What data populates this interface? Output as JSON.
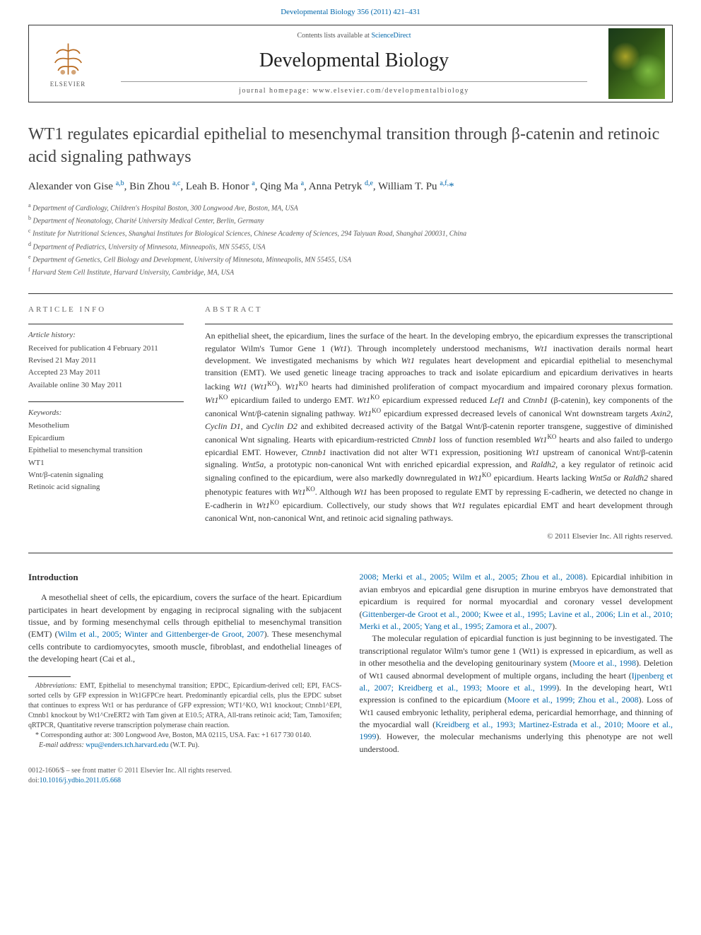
{
  "top_link_prefix": "Developmental Biology 356 (2011) 421–431",
  "header": {
    "contents_prefix": "Contents lists available at ",
    "contents_link": "ScienceDirect",
    "journal_name": "Developmental Biology",
    "homepage_prefix": "journal homepage: ",
    "homepage_url": "www.elsevier.com/developmentalbiology",
    "elsevier_label": "ELSEVIER"
  },
  "title": "WT1 regulates epicardial epithelial to mesenchymal transition through β-catenin and retinoic acid signaling pathways",
  "authors_html": "Alexander von Gise <sup>a,b</sup>, Bin Zhou <sup>a,c</sup>, Leah B. Honor <sup>a</sup>, Qing Ma <sup>a</sup>, Anna Petryk <sup>d,e</sup>, William T. Pu <sup>a,f,</sup><span class='star'>*</span>",
  "affiliations": [
    {
      "sup": "a",
      "text": "Department of Cardiology, Children's Hospital Boston, 300 Longwood Ave, Boston, MA, USA"
    },
    {
      "sup": "b",
      "text": "Department of Neonatology, Charité University Medical Center, Berlin, Germany"
    },
    {
      "sup": "c",
      "text": "Institute for Nutritional Sciences, Shanghai Institutes for Biological Sciences, Chinese Academy of Sciences, 294 Taiyuan Road, Shanghai 200031, China"
    },
    {
      "sup": "d",
      "text": "Department of Pediatrics, University of Minnesota, Minneapolis, MN 55455, USA"
    },
    {
      "sup": "e",
      "text": "Department of Genetics, Cell Biology and Development, University of Minnesota, Minneapolis, MN 55455, USA"
    },
    {
      "sup": "f",
      "text": "Harvard Stem Cell Institute, Harvard University, Cambridge, MA, USA"
    }
  ],
  "article_info": {
    "heading": "ARTICLE INFO",
    "history_label": "Article history:",
    "history": [
      "Received for publication 4 February 2011",
      "Revised 21 May 2011",
      "Accepted 23 May 2011",
      "Available online 30 May 2011"
    ],
    "keywords_label": "Keywords:",
    "keywords": [
      "Mesothelium",
      "Epicardium",
      "Epithelial to mesenchymal transition",
      "WT1",
      "Wnt/β-catenin signaling",
      "Retinoic acid signaling"
    ]
  },
  "abstract": {
    "heading": "ABSTRACT",
    "text": "An epithelial sheet, the epicardium, lines the surface of the heart. In the developing embryo, the epicardium expresses the transcriptional regulator Wilm's Tumor Gene 1 (Wt1). Through incompletely understood mechanisms, Wt1 inactivation derails normal heart development. We investigated mechanisms by which Wt1 regulates heart development and epicardial epithelial to mesenchymal transition (EMT). We used genetic lineage tracing approaches to track and isolate epicardium and epicardium derivatives in hearts lacking Wt1 (Wt1^KO). Wt1^KO hearts had diminished proliferation of compact myocardium and impaired coronary plexus formation. Wt1^KO epicardium failed to undergo EMT. Wt1^KO epicardium expressed reduced Lef1 and Ctnnb1 (β-catenin), key components of the canonical Wnt/β-catenin signaling pathway. Wt1^KO epicardium expressed decreased levels of canonical Wnt downstream targets Axin2, Cyclin D1, and Cyclin D2 and exhibited decreased activity of the Batgal Wnt/β-catenin reporter transgene, suggestive of diminished canonical Wnt signaling. Hearts with epicardium-restricted Ctnnb1 loss of function resembled Wt1^KO hearts and also failed to undergo epicardial EMT. However, Ctnnb1 inactivation did not alter WT1 expression, positioning Wt1 upstream of canonical Wnt/β-catenin signaling. Wnt5a, a prototypic non-canonical Wnt with enriched epicardial expression, and Raldh2, a key regulator of retinoic acid signaling confined to the epicardium, were also markedly downregulated in Wt1^KO epicardium. Hearts lacking Wnt5a or Raldh2 shared phenotypic features with Wt1^KO. Although Wt1 has been proposed to regulate EMT by repressing E-cadherin, we detected no change in E-cadherin in Wt1^KO epicardium. Collectively, our study shows that Wt1 regulates epicardial EMT and heart development through canonical Wnt, non-canonical Wnt, and retinoic acid signaling pathways.",
    "copyright": "© 2011 Elsevier Inc. All rights reserved."
  },
  "introduction": {
    "heading": "Introduction",
    "col1_p1": "A mesothelial sheet of cells, the epicardium, covers the surface of the heart. Epicardium participates in heart development by engaging in reciprocal signaling with the subjacent tissue, and by forming mesenchymal cells through epithelial to mesenchymal transition (EMT) (Wilm et al., 2005; Winter and Gittenberger-de Groot, 2007). These mesenchymal cells contribute to cardiomyocytes, smooth muscle, fibroblast, and endothelial lineages of the developing heart (Cai et al.,",
    "col2_p1": "2008; Merki et al., 2005; Wilm et al., 2005; Zhou et al., 2008). Epicardial inhibition in avian embryos and epicardial gene disruption in murine embryos have demonstrated that epicardium is required for normal myocardial and coronary vessel development (Gittenberger-de Groot et al., 2000; Kwee et al., 1995; Lavine et al., 2006; Lin et al., 2010; Merki et al., 2005; Yang et al., 1995; Zamora et al., 2007).",
    "col2_p2": "The molecular regulation of epicardial function is just beginning to be investigated. The transcriptional regulator Wilm's tumor gene 1 (Wt1) is expressed in epicardium, as well as in other mesothelia and the developing genitourinary system (Moore et al., 1998). Deletion of Wt1 caused abnormal development of multiple organs, including the heart (Ijpenberg et al., 2007; Kreidberg et al., 1993; Moore et al., 1999). In the developing heart, Wt1 expression is confined to the epicardium (Moore et al., 1999; Zhou et al., 2008). Loss of Wt1 caused embryonic lethality, peripheral edema, pericardial hemorrhage, and thinning of the myocardial wall (Kreidberg et al., 1993; Martinez-Estrada et al., 2010; Moore et al., 1999). However, the molecular mechanisms underlying this phenotype are not well understood."
  },
  "footnotes": {
    "abbrev_label": "Abbreviations:",
    "abbrev_text": " EMT, Epithelial to mesenchymal transition; EPDC, Epicardium-derived cell; EPI, FACS-sorted cells by GFP expression in Wt1GFPCre heart. Predominantly epicardial cells, plus the EPDC subset that continues to express Wt1 or has perdurance of GFP expression; WT1^KO, Wt1 knockout; Ctnnb1^EPI, Ctnnb1 knockout by Wt1^CreERT2 with Tam given at E10.5; ATRA, All-trans retinoic acid; Tam, Tamoxifen; qRTPCR, Quantitative reverse transcription polymerase chain reaction.",
    "corr_label": "* Corresponding author at: 300 Longwood Ave, Boston, MA 02115, USA. Fax: +1 617 730 0140.",
    "email_label": "E-mail address: ",
    "email": "wpu@enders.tch.harvard.edu",
    "email_suffix": " (W.T. Pu)."
  },
  "bottom": {
    "issn": "0012-1606/$ – see front matter © 2011 Elsevier Inc. All rights reserved.",
    "doi_label": "doi:",
    "doi": "10.1016/j.ydbio.2011.05.668"
  },
  "colors": {
    "link": "#0066aa",
    "text": "#333333",
    "muted": "#555555",
    "border": "#333333"
  }
}
